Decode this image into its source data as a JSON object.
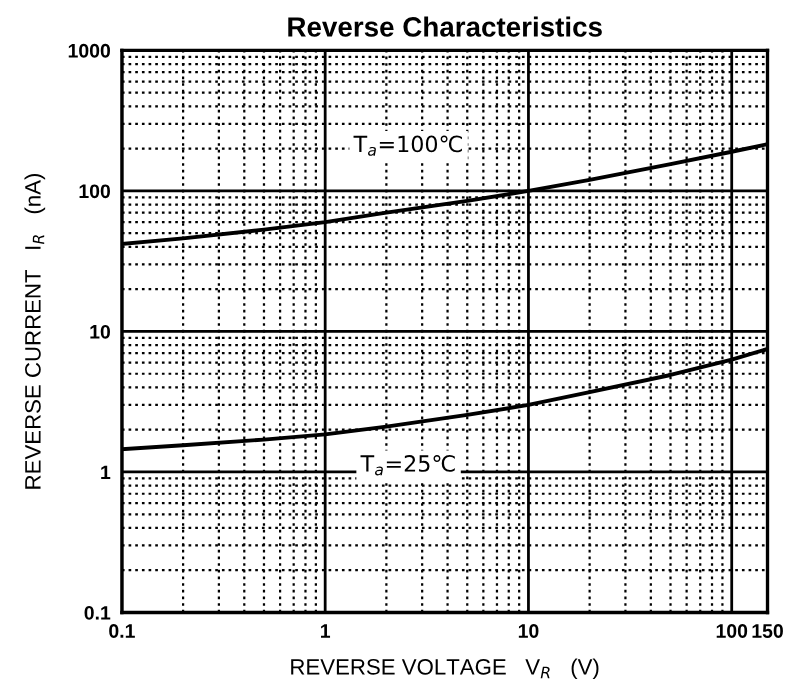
{
  "chart_data": {
    "type": "line",
    "title": "Reverse Characteristics",
    "xlabel": "REVERSE VOLTAGE   V$_{R}$   (V)",
    "ylabel": "REVERSE CURRENT   I$_{R}$   (nA)",
    "log": "xy",
    "xlim": [
      0.1,
      150
    ],
    "ylim": [
      0.1,
      1000
    ],
    "xticks": [
      0.1,
      1,
      10,
      100,
      150
    ],
    "yticks": [
      0.1,
      1,
      10,
      100,
      1000
    ],
    "grid": true,
    "marker": "none",
    "line_style": "solid",
    "series": [
      {
        "name": "T$_{a}$=100℃",
        "color": "#000000",
        "x": [
          0.1,
          0.2,
          0.5,
          1,
          2,
          5,
          10,
          20,
          50,
          100,
          150
        ],
        "values": [
          42,
          46,
          53,
          60,
          70,
          85,
          100,
          120,
          155,
          190,
          215
        ]
      },
      {
        "name": "T$_{a}$=25℃",
        "color": "#000000",
        "x": [
          0.1,
          0.2,
          0.5,
          1,
          2,
          5,
          10,
          20,
          50,
          100,
          150
        ],
        "values": [
          1.45,
          1.55,
          1.7,
          1.85,
          2.1,
          2.55,
          3.0,
          3.7,
          4.9,
          6.3,
          7.5
        ]
      }
    ]
  }
}
